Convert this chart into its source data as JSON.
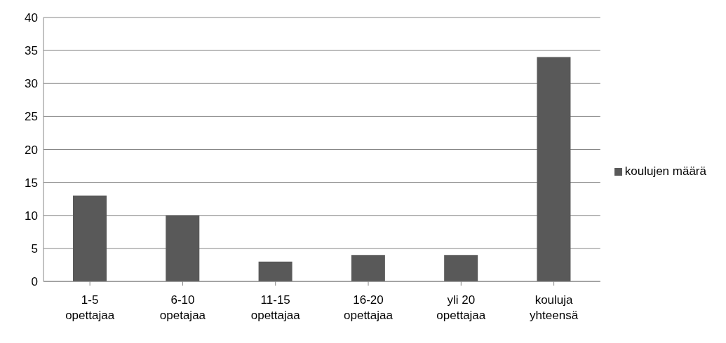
{
  "chart_data": {
    "type": "bar",
    "categories": [
      "1-5 opettajaa",
      "6-10 opetajaa",
      "11-15 opettajaa",
      "16-20 opettajaa",
      "yli 20 opettajaa",
      "kouluja yhteensä"
    ],
    "series": [
      {
        "name": "koulujen määrä",
        "color": "#595959",
        "values": [
          13,
          10,
          3,
          4,
          4,
          34
        ]
      }
    ],
    "ylim": [
      0,
      40
    ],
    "yticks": [
      0,
      5,
      10,
      15,
      20,
      25,
      30,
      35,
      40
    ],
    "grid": "y",
    "legend": "right"
  }
}
